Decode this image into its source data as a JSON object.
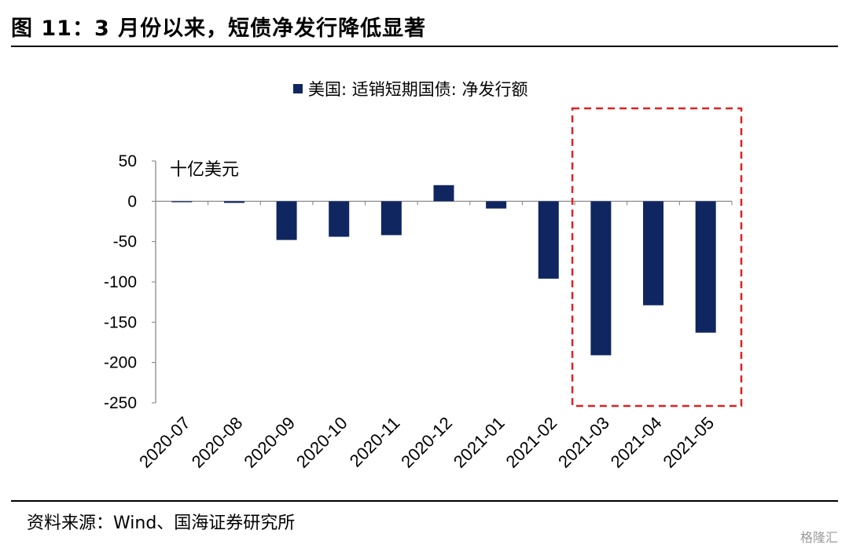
{
  "figure": {
    "title": "图 11：3 月份以来，短债净发行降低显著",
    "source": "资料来源：Wind、国海证券研究所",
    "watermark": "格隆汇"
  },
  "chart_data": {
    "type": "bar",
    "legend": "美国: 适销短期国债: 净发行额",
    "unit_label": "十亿美元",
    "categories": [
      "2020-07",
      "2020-08",
      "2020-09",
      "2020-10",
      "2020-11",
      "2020-12",
      "2021-01",
      "2021-02",
      "2021-03",
      "2021-04",
      "2021-05"
    ],
    "series": [
      {
        "name": "美国: 适销短期国债: 净发行额",
        "values": [
          -1,
          -2,
          -48,
          -44,
          -42,
          20,
          -9,
          -96,
          -191,
          -129,
          -163
        ]
      }
    ],
    "ylim": [
      -250,
      50
    ],
    "yticks": [
      50,
      0,
      -50,
      -100,
      -150,
      -200,
      -250
    ],
    "highlight": {
      "from": "2021-03",
      "to": "2021-05",
      "style": "dashed-red-box"
    },
    "bar_color": "#0f2660",
    "highlight_color": "#e02020"
  }
}
